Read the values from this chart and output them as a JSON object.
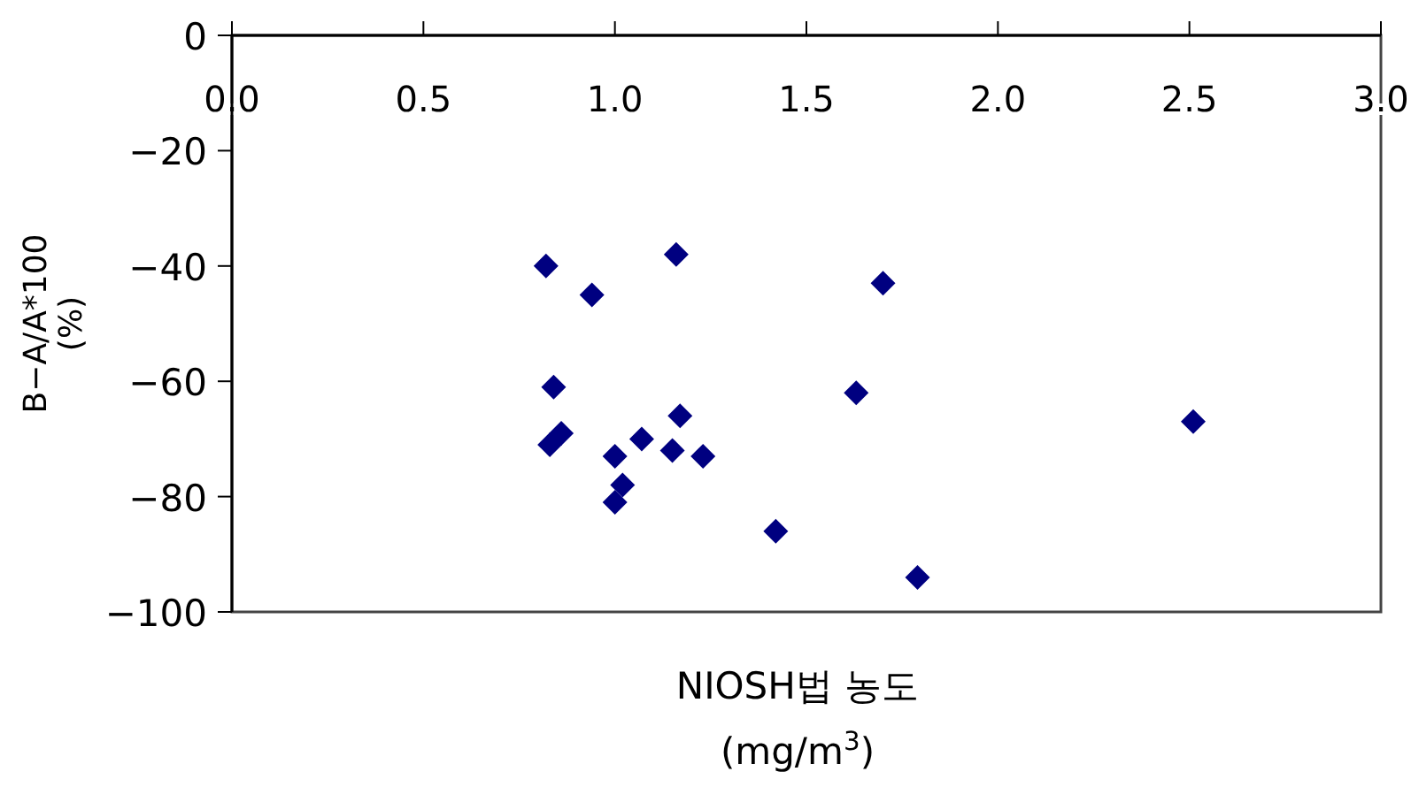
{
  "chart_data": {
    "type": "scatter",
    "xlabel": "NIOSH법 농도\n(mg/m$^{3}$)",
    "ylabel": "B−A/A*100\n(%)",
    "xlim": [
      0,
      3
    ],
    "ylim": [
      -100,
      0
    ],
    "xticks": [
      {
        "value": 0,
        "label": "0.0"
      },
      {
        "value": 0.5,
        "label": "0.5"
      },
      {
        "value": 1,
        "label": "1.0"
      },
      {
        "value": 1.5,
        "label": "1.5"
      },
      {
        "value": 2,
        "label": "2.0"
      },
      {
        "value": 2.5,
        "label": "2.5"
      },
      {
        "value": 3,
        "label": "3.0"
      }
    ],
    "yticks": [
      0,
      -20,
      -40,
      -60,
      -80,
      -100
    ],
    "marker": "diamond",
    "grid": false,
    "series": [
      {
        "color": "#000080",
        "x": [
          0.82,
          0.94,
          1.16,
          1.7,
          0.84,
          1.63,
          0.86,
          0.83,
          1.17,
          1.07,
          1.15,
          1.23,
          1.0,
          1.02,
          1.0,
          1.42,
          1.79,
          2.51
        ],
        "values": [
          -40,
          -45,
          -38,
          -43,
          -61,
          -62,
          -69,
          -71,
          -66,
          -70,
          -72,
          -73,
          -73,
          -78,
          -81,
          -86,
          -94,
          -67
        ]
      }
    ]
  }
}
